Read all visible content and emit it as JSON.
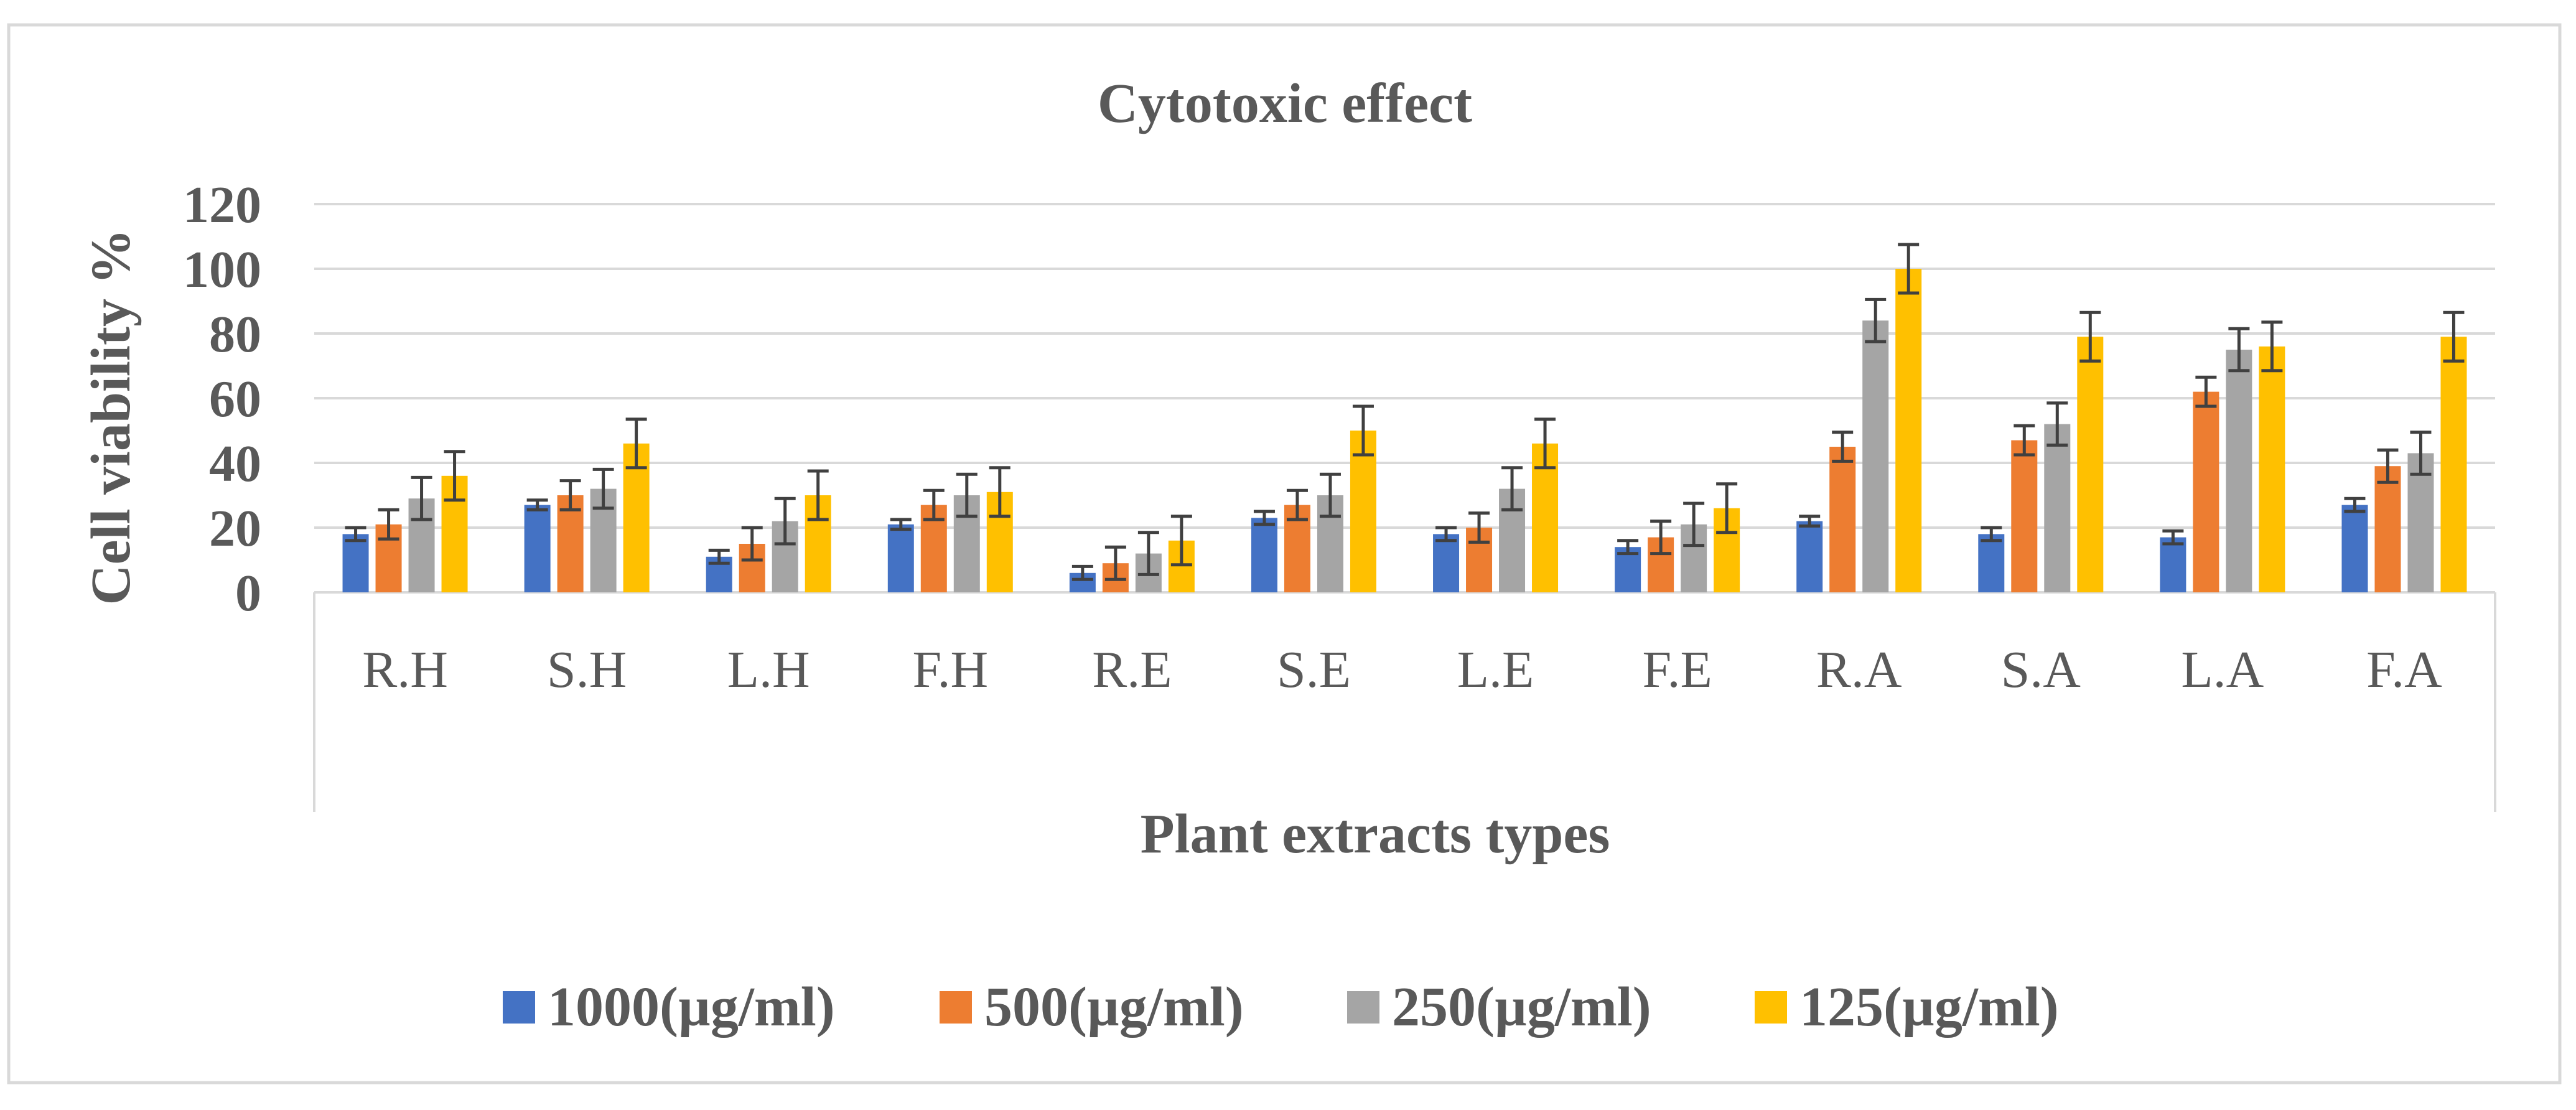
{
  "chart_data": {
    "type": "bar",
    "title": "Cytotoxic effect",
    "xlabel": "Plant extracts types",
    "ylabel": "Cell viability %",
    "ylim": [
      0,
      120
    ],
    "yticks": [
      "0",
      "20",
      "40",
      "60",
      "80",
      "100",
      "120"
    ],
    "grid": true,
    "legend_position": "bottom",
    "categories": [
      "R.H",
      "S.H",
      "L.H",
      "F.H",
      "R.E",
      "S.E",
      "L.E",
      "F.E",
      "R.A",
      "S.A",
      "L.A",
      "F.A"
    ],
    "series": [
      {
        "name": "1000(µg/ml)",
        "color": "#4472C4",
        "values": [
          18,
          27,
          11,
          21,
          6,
          23,
          18,
          14,
          22,
          18,
          17,
          27
        ],
        "errors": [
          2,
          1.5,
          2,
          1.5,
          2,
          2,
          2,
          2,
          1.5,
          2,
          2,
          2
        ]
      },
      {
        "name": "500(µg/ml)",
        "color": "#ED7D31",
        "values": [
          21,
          30,
          15,
          27,
          9,
          27,
          20,
          17,
          45,
          47,
          62,
          39
        ],
        "errors": [
          4.5,
          4.5,
          5,
          4.5,
          5,
          4.5,
          4.5,
          5,
          4.5,
          4.5,
          4.5,
          5
        ]
      },
      {
        "name": "250(µg/ml)",
        "color": "#A5A5A5",
        "values": [
          29,
          32,
          22,
          30,
          12,
          30,
          32,
          21,
          84,
          52,
          75,
          43
        ],
        "errors": [
          6.5,
          6,
          7,
          6.5,
          6.5,
          6.5,
          6.5,
          6.5,
          6.5,
          6.5,
          6.5,
          6.5
        ]
      },
      {
        "name": "125(µg/ml)",
        "color": "#FFC000",
        "values": [
          36,
          46,
          30,
          31,
          16,
          50,
          46,
          26,
          100,
          79,
          76,
          79
        ],
        "errors": [
          7.5,
          7.5,
          7.5,
          7.5,
          7.5,
          7.5,
          7.5,
          7.5,
          7.5,
          7.5,
          7.5,
          7.5
        ]
      }
    ]
  }
}
